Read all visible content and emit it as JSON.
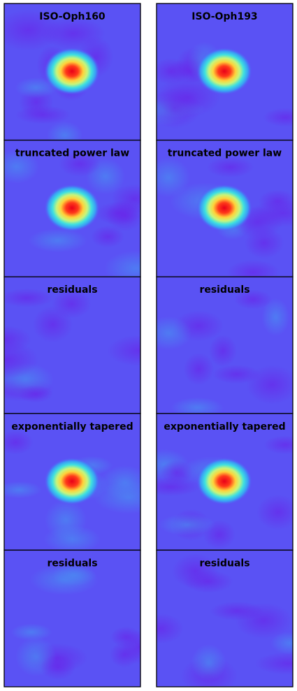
{
  "columns": [
    {
      "panels": [
        "ISO-Oph160",
        "truncated power law",
        "residuals",
        "exponentially tapered",
        "residuals"
      ]
    },
    {
      "panels": [
        "ISO-Oph193",
        "truncated power law",
        "residuals",
        "exponentially tapered",
        "residuals"
      ]
    }
  ]
}
